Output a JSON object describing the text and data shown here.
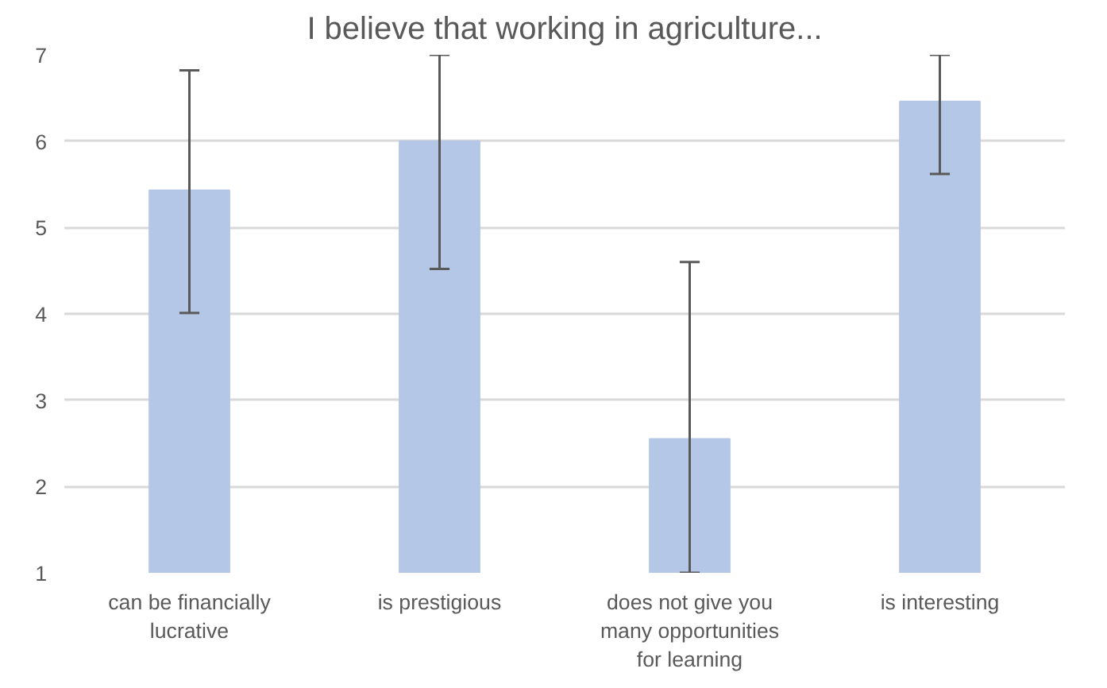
{
  "chart_data": {
    "type": "bar",
    "title": "I believe that working in agriculture...",
    "categories": [
      "can be financially lucrative",
      "is prestigious",
      "does not give you many opportunities for learning",
      "is interesting"
    ],
    "values": [
      5.43,
      6.0,
      2.55,
      6.46
    ],
    "errors": [
      [
        4.01,
        6.82
      ],
      [
        4.52,
        7.0
      ],
      [
        1.0,
        4.6
      ],
      [
        5.62,
        7.0
      ]
    ],
    "color": "#b4c7e7",
    "ylim": [
      1,
      7
    ],
    "yticks": [
      1,
      2,
      3,
      4,
      5,
      6,
      7
    ],
    "grid": "y"
  }
}
